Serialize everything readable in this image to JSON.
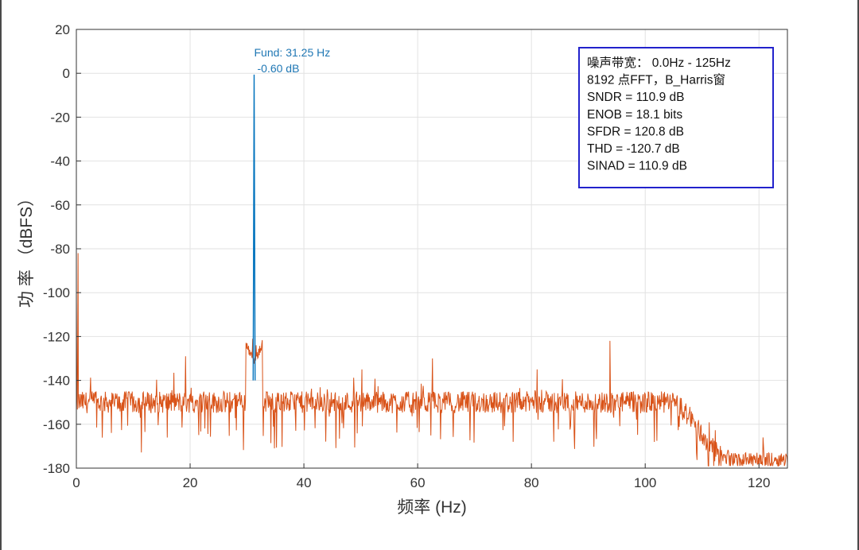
{
  "chart_data": {
    "type": "line",
    "title": "",
    "xlabel": "频率 (Hz)",
    "ylabel": "功 率 （dBFS）",
    "xlim": [
      0,
      125
    ],
    "ylim": [
      -180,
      20
    ],
    "xticks": [
      0,
      20,
      40,
      60,
      80,
      100,
      120
    ],
    "yticks": [
      20,
      0,
      -20,
      -40,
      -60,
      -80,
      -100,
      -120,
      -140,
      -160,
      -180
    ],
    "grid": true,
    "series": [
      {
        "color": "#d95319",
        "noise_floor_db": -150,
        "floor_end_hz": 104,
        "rolloff_end_hz": 115,
        "stopband_db": -176,
        "spurs": [
          {
            "x": 0.3,
            "y": -82
          },
          {
            "x": 19.2,
            "y": -129
          },
          {
            "x": 31.0,
            "y": -121
          },
          {
            "x": 31.6,
            "y": -124
          },
          {
            "x": 50.2,
            "y": -135
          },
          {
            "x": 62.6,
            "y": -130
          },
          {
            "x": 81.0,
            "y": -135
          },
          {
            "x": 93.8,
            "y": -122
          }
        ]
      },
      {
        "color": "#0072bd",
        "points": [
          {
            "x": 31.25,
            "y": -0.6
          }
        ]
      }
    ],
    "annotation": {
      "line1": "Fund: 31.25 Hz",
      "line2": "-0.60 dB",
      "x": 31.25,
      "y": -0.6
    },
    "legend_box": {
      "placement": "top-right",
      "border_color": "#2222cc",
      "lines": [
        "噪声带宽： 0.0Hz -  125Hz",
        "8192 点FFT，B_Harris窗",
        "SNDR = 110.9 dB",
        "ENOB = 18.1 bits",
        "SFDR = 120.8 dB",
        "THD = -120.7 dB",
        "SINAD = 110.9 dB"
      ]
    }
  }
}
